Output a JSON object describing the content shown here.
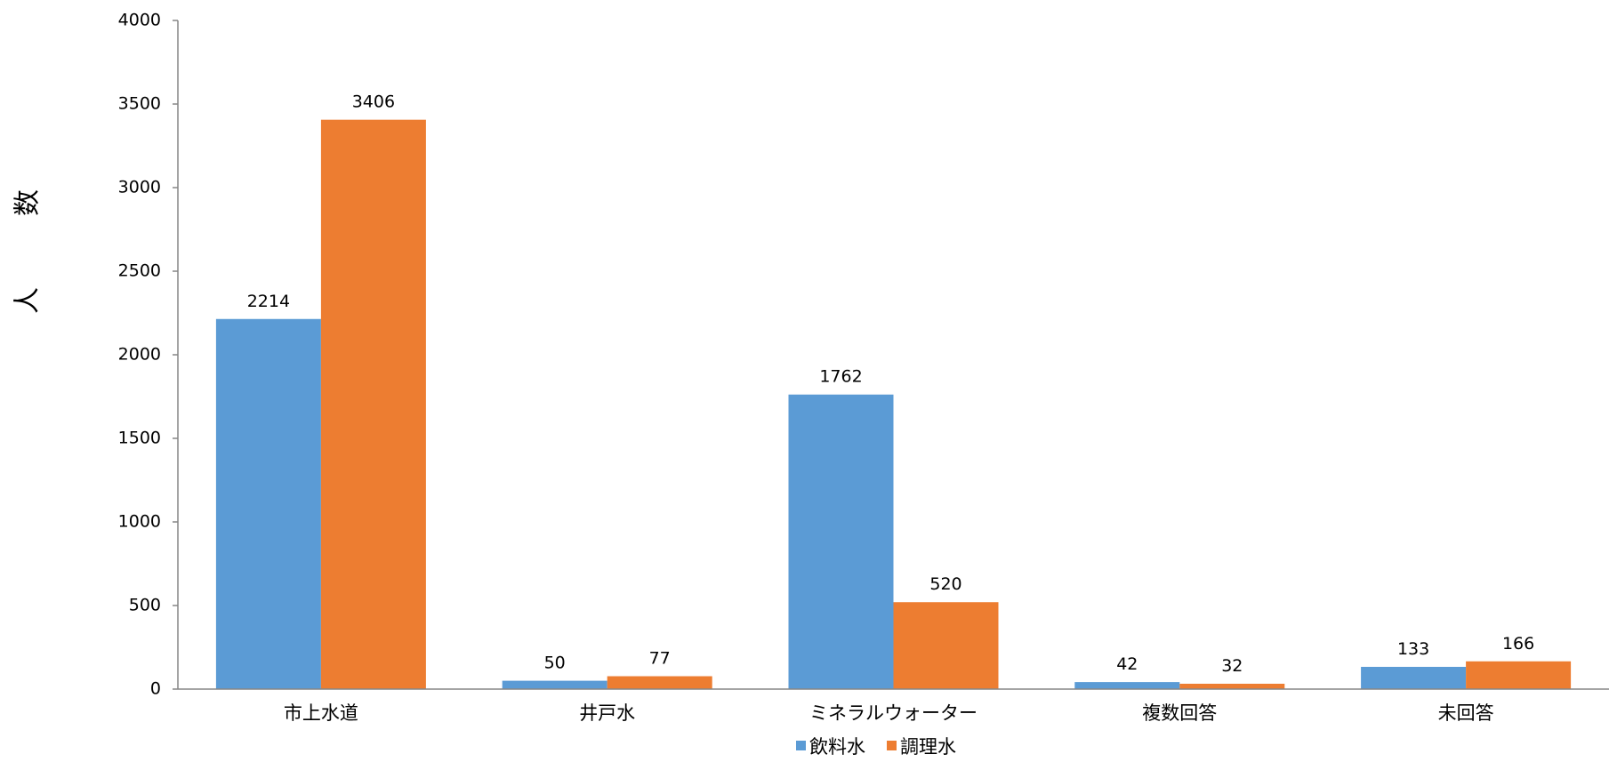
{
  "chart_data": {
    "type": "bar",
    "categories": [
      "市上水道",
      "井戸水",
      "ミネラルウォーター",
      "複数回答",
      "未回答"
    ],
    "series": [
      {
        "name": "飲料水",
        "values": [
          2214,
          50,
          1762,
          42,
          133
        ],
        "color": "#5B9BD5"
      },
      {
        "name": "調理水",
        "values": [
          3406,
          77,
          520,
          32,
          166
        ],
        "color": "#ED7D31"
      }
    ],
    "ylabel_chars": [
      "数",
      "人"
    ],
    "ylim": [
      0,
      4000
    ],
    "yticks": [
      0,
      500,
      1000,
      1500,
      2000,
      2500,
      3000,
      3500,
      4000
    ],
    "grid": false,
    "legend_position": "bottom",
    "data_labels": true
  }
}
